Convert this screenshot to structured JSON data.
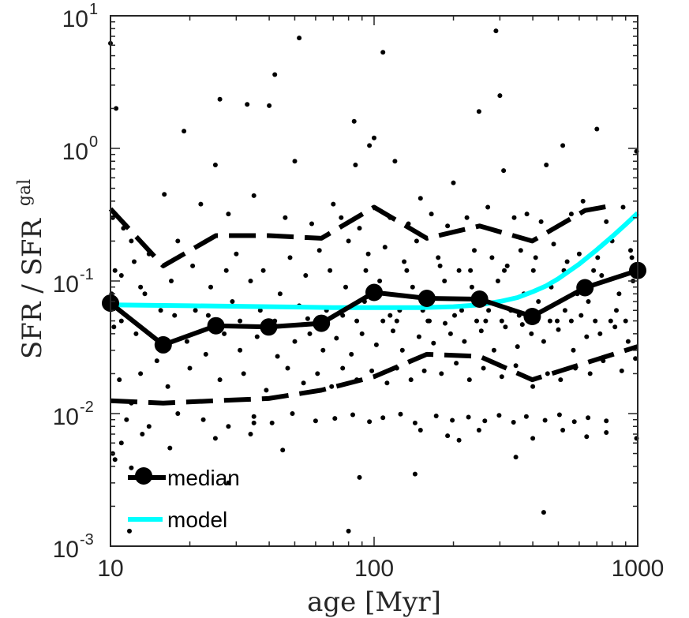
{
  "chart_data": {
    "type": "scatter",
    "xscale": "log",
    "yscale": "log",
    "xlim": [
      10,
      1000
    ],
    "ylim": [
      0.001,
      10
    ],
    "xlabel": "age [Myr]",
    "ylabel": {
      "main": "SFR / SFR",
      "superscript": "gal"
    },
    "xticks": [
      {
        "value": 10,
        "label": "10"
      },
      {
        "value": 100,
        "label": "100"
      },
      {
        "value": 1000,
        "label": "1000"
      }
    ],
    "yticks": [
      {
        "value": 0.001,
        "base": "10",
        "exp": "-3"
      },
      {
        "value": 0.01,
        "base": "10",
        "exp": "-2"
      },
      {
        "value": 0.1,
        "base": "10",
        "exp": "-1"
      },
      {
        "value": 1,
        "base": "10",
        "exp": "0"
      },
      {
        "value": 10,
        "base": "10",
        "exp": "1"
      }
    ],
    "colors": {
      "points": "#000000",
      "median": "#000000",
      "model": "#00ffff",
      "axes": "#262626"
    },
    "legend": {
      "location": "bottom-left",
      "entries": [
        {
          "label": "median",
          "series": "median"
        },
        {
          "label": "model",
          "series": "model"
        }
      ]
    },
    "series": [
      {
        "name": "median",
        "type": "line-marker",
        "x": [
          10,
          15.85,
          25.12,
          39.81,
          63.1,
          100,
          158.5,
          251.2,
          398.1,
          631,
          1000
        ],
        "y": [
          0.068,
          0.033,
          0.046,
          0.045,
          0.048,
          0.082,
          0.074,
          0.073,
          0.054,
          0.089,
          0.12
        ]
      },
      {
        "name": "upper percentile",
        "type": "dashed",
        "x": [
          10,
          15.85,
          25.12,
          39.81,
          63.1,
          100,
          158.5,
          251.2,
          398.1,
          631,
          800
        ],
        "y": [
          0.35,
          0.13,
          0.22,
          0.22,
          0.21,
          0.36,
          0.21,
          0.26,
          0.2,
          0.34,
          0.37
        ]
      },
      {
        "name": "lower percentile",
        "type": "dashed",
        "x": [
          10,
          15.85,
          25.12,
          39.81,
          63.1,
          100,
          158.5,
          251.2,
          398.1,
          631,
          1000
        ],
        "y": [
          0.0125,
          0.012,
          0.0125,
          0.013,
          0.015,
          0.019,
          0.028,
          0.027,
          0.018,
          0.024,
          0.032
        ]
      },
      {
        "name": "model",
        "type": "line",
        "x": [
          10,
          20,
          40,
          70,
          100,
          150,
          200,
          250,
          300,
          350,
          400,
          450,
          500,
          600,
          700,
          800,
          900,
          1000
        ],
        "y": [
          0.066,
          0.065,
          0.064,
          0.063,
          0.063,
          0.063,
          0.064,
          0.066,
          0.07,
          0.075,
          0.083,
          0.092,
          0.104,
          0.134,
          0.172,
          0.216,
          0.267,
          0.325
        ]
      },
      {
        "name": "galaxies",
        "type": "scatter",
        "points": [
          [
            10,
            6.2
          ],
          [
            10.5,
            2.0
          ],
          [
            12,
            0.012
          ],
          [
            11,
            0.05
          ],
          [
            13,
            0.09
          ],
          [
            10.2,
            0.3
          ],
          [
            19,
            1.35
          ],
          [
            26,
            2.35
          ],
          [
            33,
            2.15
          ],
          [
            40,
            2.1
          ],
          [
            42,
            3.6
          ],
          [
            52,
            6.8
          ],
          [
            84,
            1.6
          ],
          [
            100,
            1.2
          ],
          [
            108,
            5.3
          ],
          [
            290,
            7.7
          ],
          [
            300,
            2.5
          ],
          [
            250,
            1.9
          ],
          [
            25,
            0.75
          ],
          [
            50,
            0.8
          ],
          [
            85,
            0.75
          ],
          [
            120,
            0.8
          ],
          [
            450,
            0.75
          ],
          [
            520,
            1.05
          ],
          [
            700,
            1.4
          ],
          [
            990,
            0.95
          ],
          [
            96,
            1.05
          ],
          [
            310,
            0.68
          ],
          [
            200,
            0.55
          ],
          [
            150,
            0.42
          ],
          [
            70,
            0.38
          ],
          [
            35,
            0.44
          ],
          [
            16,
            0.45
          ],
          [
            22,
            0.38
          ],
          [
            28,
            0.32
          ],
          [
            46,
            0.3
          ],
          [
            58,
            0.27
          ],
          [
            75,
            0.3
          ],
          [
            88,
            0.25
          ],
          [
            115,
            0.3
          ],
          [
            135,
            0.27
          ],
          [
            165,
            0.32
          ],
          [
            190,
            0.26
          ],
          [
            225,
            0.3
          ],
          [
            270,
            0.36
          ],
          [
            340,
            0.3
          ],
          [
            380,
            0.32
          ],
          [
            430,
            0.28
          ],
          [
            560,
            0.32
          ],
          [
            620,
            0.4
          ],
          [
            760,
            0.28
          ],
          [
            880,
            0.36
          ],
          [
            12,
            0.2
          ],
          [
            14,
            0.16
          ],
          [
            18,
            0.2
          ],
          [
            30,
            0.16
          ],
          [
            38,
            0.12
          ],
          [
            48,
            0.15
          ],
          [
            62,
            0.17
          ],
          [
            80,
            0.2
          ],
          [
            95,
            0.16
          ],
          [
            110,
            0.18
          ],
          [
            130,
            0.14
          ],
          [
            145,
            0.2
          ],
          [
            175,
            0.15
          ],
          [
            210,
            0.12
          ],
          [
            240,
            0.17
          ],
          [
            280,
            0.15
          ],
          [
            320,
            0.13
          ],
          [
            360,
            0.17
          ],
          [
            410,
            0.15
          ],
          [
            480,
            0.19
          ],
          [
            540,
            0.14
          ],
          [
            600,
            0.16
          ],
          [
            680,
            0.12
          ],
          [
            800,
            0.2
          ],
          [
            940,
            0.17
          ],
          [
            11,
            0.11
          ],
          [
            13.5,
            0.08
          ],
          [
            17,
            0.1
          ],
          [
            21,
            0.06
          ],
          [
            24,
            0.09
          ],
          [
            29,
            0.07
          ],
          [
            34,
            0.1
          ],
          [
            44,
            0.08
          ],
          [
            55,
            0.11
          ],
          [
            66,
            0.06
          ],
          [
            78,
            0.09
          ],
          [
            92,
            0.07
          ],
          [
            105,
            0.1
          ],
          [
            125,
            0.06
          ],
          [
            140,
            0.09
          ],
          [
            160,
            0.05
          ],
          [
            185,
            0.1
          ],
          [
            215,
            0.06
          ],
          [
            235,
            0.09
          ],
          [
            265,
            0.05
          ],
          [
            295,
            0.1
          ],
          [
            330,
            0.06
          ],
          [
            370,
            0.08
          ],
          [
            420,
            0.07
          ],
          [
            470,
            0.09
          ],
          [
            530,
            0.06
          ],
          [
            590,
            0.08
          ],
          [
            650,
            0.07
          ],
          [
            730,
            0.11
          ],
          [
            850,
            0.08
          ],
          [
            960,
            0.1
          ],
          [
            10.3,
            0.045
          ],
          [
            12.5,
            0.04
          ],
          [
            15,
            0.025
          ],
          [
            19.5,
            0.035
          ],
          [
            23,
            0.028
          ],
          [
            27,
            0.04
          ],
          [
            31,
            0.03
          ],
          [
            36,
            0.038
          ],
          [
            43,
            0.027
          ],
          [
            50,
            0.035
          ],
          [
            57,
            0.04
          ],
          [
            64,
            0.03
          ],
          [
            72,
            0.037
          ],
          [
            82,
            0.028
          ],
          [
            90,
            0.04
          ],
          [
            102,
            0.033
          ],
          [
            118,
            0.042
          ],
          [
            128,
            0.03
          ],
          [
            148,
            0.038
          ],
          [
            168,
            0.034
          ],
          [
            195,
            0.04
          ],
          [
            220,
            0.035
          ],
          [
            255,
            0.042
          ],
          [
            285,
            0.03
          ],
          [
            315,
            0.045
          ],
          [
            350,
            0.032
          ],
          [
            395,
            0.04
          ],
          [
            440,
            0.035
          ],
          [
            500,
            0.043
          ],
          [
            570,
            0.03
          ],
          [
            640,
            0.038
          ],
          [
            720,
            0.04
          ],
          [
            820,
            0.045
          ],
          [
            920,
            0.035
          ],
          [
            10.8,
            0.018
          ],
          [
            13,
            0.02
          ],
          [
            16.5,
            0.016
          ],
          [
            20,
            0.022
          ],
          [
            26,
            0.018
          ],
          [
            32,
            0.02
          ],
          [
            39,
            0.015
          ],
          [
            47,
            0.022
          ],
          [
            54,
            0.017
          ],
          [
            61,
            0.02
          ],
          [
            69,
            0.016
          ],
          [
            76,
            0.022
          ],
          [
            86,
            0.018
          ],
          [
            98,
            0.021
          ],
          [
            112,
            0.017
          ],
          [
            122,
            0.022
          ],
          [
            138,
            0.018
          ],
          [
            155,
            0.021
          ],
          [
            180,
            0.02
          ],
          [
            205,
            0.024
          ],
          [
            230,
            0.018
          ],
          [
            260,
            0.022
          ],
          [
            305,
            0.019
          ],
          [
            345,
            0.023
          ],
          [
            400,
            0.016
          ],
          [
            455,
            0.02
          ],
          [
            510,
            0.018
          ],
          [
            580,
            0.022
          ],
          [
            660,
            0.02
          ],
          [
            740,
            0.025
          ],
          [
            870,
            0.021
          ],
          [
            980,
            0.026
          ],
          [
            11.5,
            0.009
          ],
          [
            14,
            0.008
          ],
          [
            18,
            0.01
          ],
          [
            22.5,
            0.009
          ],
          [
            28,
            0.008
          ],
          [
            35,
            0.0095
          ],
          [
            41,
            0.0085
          ],
          [
            49,
            0.01
          ],
          [
            60,
            0.0088
          ],
          [
            71,
            0.0092
          ],
          [
            83,
            0.0098
          ],
          [
            96,
            0.0087
          ],
          [
            108,
            0.0093
          ],
          [
            126,
            0.0099
          ],
          [
            143,
            0.0085
          ],
          [
            172,
            0.0096
          ],
          [
            198,
            0.0089
          ],
          [
            228,
            0.0094
          ],
          [
            263,
            0.0088
          ],
          [
            298,
            0.0097
          ],
          [
            338,
            0.0086
          ],
          [
            378,
            0.0095
          ],
          [
            445,
            0.0089
          ],
          [
            505,
            0.0098
          ],
          [
            575,
            0.0087
          ],
          [
            648,
            0.0093
          ],
          [
            760,
            0.0088
          ],
          [
            10.2,
            0.005
          ],
          [
            10.4,
            0.0045
          ],
          [
            11,
            0.006
          ],
          [
            13.2,
            0.007
          ],
          [
            16.8,
            0.0055
          ],
          [
            25,
            0.0065
          ],
          [
            34,
            0.007
          ],
          [
            45,
            0.0053
          ],
          [
            88,
            0.0033
          ],
          [
            143,
            0.0035
          ],
          [
            190,
            0.0068
          ],
          [
            210,
            0.0063
          ],
          [
            250,
            0.0075
          ],
          [
            345,
            0.0047
          ],
          [
            400,
            0.0065
          ],
          [
            440,
            0.0018
          ],
          [
            520,
            0.0075
          ],
          [
            640,
            0.0067
          ],
          [
            760,
            0.0072
          ],
          [
            990,
            0.0065
          ],
          [
            28,
            0.003
          ],
          [
            80,
            0.0013
          ],
          [
            11.8,
            0.0013
          ],
          [
            12,
            0.0039
          ],
          [
            35,
            0.0085
          ],
          [
            150,
            0.0075
          ],
          [
            10.1,
            0.08
          ],
          [
            10.4,
            0.12
          ],
          [
            11.2,
            0.25
          ],
          [
            12.3,
            0.14
          ],
          [
            15.5,
            0.06
          ],
          [
            20.5,
            0.13
          ],
          [
            27.5,
            0.12
          ],
          [
            37,
            0.06
          ],
          [
            52,
            0.065
          ],
          [
            68,
            0.12
          ],
          [
            76,
            0.055
          ],
          [
            93,
            0.12
          ],
          [
            115,
            0.055
          ],
          [
            133,
            0.12
          ],
          [
            153,
            0.06
          ],
          [
            178,
            0.13
          ],
          [
            202,
            0.055
          ],
          [
            232,
            0.12
          ],
          [
            272,
            0.06
          ],
          [
            312,
            0.12
          ],
          [
            355,
            0.055
          ],
          [
            402,
            0.12
          ],
          [
            465,
            0.05
          ],
          [
            525,
            0.12
          ],
          [
            610,
            0.055
          ],
          [
            705,
            0.15
          ],
          [
            830,
            0.06
          ],
          [
            950,
            0.15
          ],
          [
            17.5,
            0.055
          ],
          [
            23.5,
            0.055
          ],
          [
            31,
            0.05
          ],
          [
            42,
            0.05
          ],
          [
            56,
            0.052
          ],
          [
            66,
            0.05
          ],
          [
            86,
            0.05
          ],
          [
            108,
            0.05
          ],
          [
            122,
            0.05
          ],
          [
            162,
            0.05
          ],
          [
            186,
            0.048
          ],
          [
            245,
            0.05
          ],
          [
            305,
            0.05
          ],
          [
            365,
            0.047
          ],
          [
            415,
            0.05
          ],
          [
            495,
            0.05
          ],
          [
            560,
            0.05
          ],
          [
            690,
            0.05
          ],
          [
            790,
            0.05
          ],
          [
            900,
            0.05
          ]
        ]
      }
    ]
  }
}
